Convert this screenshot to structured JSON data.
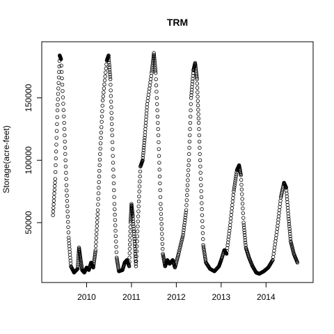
{
  "chart_data": {
    "type": "scatter",
    "title": "TRM",
    "xlabel": "",
    "ylabel": "Storage(acre-feet)",
    "x_ticks": [
      {
        "label": "2010",
        "value": 2010
      },
      {
        "label": "2011",
        "value": 2011
      },
      {
        "label": "2012",
        "value": 2012
      },
      {
        "label": "2013",
        "value": 2013
      },
      {
        "label": "2014",
        "value": 2014
      }
    ],
    "y_ticks": [
      {
        "label": "50000",
        "value": 50000
      },
      {
        "label": "100000",
        "value": 100000
      },
      {
        "label": "150000",
        "value": 150000
      }
    ],
    "xlim": [
      2009.0,
      2015.05
    ],
    "ylim": [
      2000,
      195000
    ],
    "grid": false,
    "marker": "open-circle",
    "series": [
      {
        "points": [
          [
            2009.25,
            56000
          ],
          [
            2009.3,
            85000
          ],
          [
            2009.35,
            140000
          ],
          [
            2009.4,
            184000
          ],
          [
            2009.43,
            181000
          ],
          [
            2009.5,
            130000
          ],
          [
            2009.55,
            80000
          ],
          [
            2009.6,
            38000
          ],
          [
            2009.65,
            15000
          ],
          [
            2009.72,
            10000
          ],
          [
            2009.8,
            13000
          ],
          [
            2009.83,
            30000
          ],
          [
            2009.86,
            22000
          ],
          [
            2009.9,
            12000
          ],
          [
            2009.95,
            10000
          ],
          [
            2010.0,
            14000
          ],
          [
            2010.05,
            12000
          ],
          [
            2010.1,
            18000
          ],
          [
            2010.15,
            14000
          ],
          [
            2010.2,
            28000
          ],
          [
            2010.25,
            60000
          ],
          [
            2010.3,
            105000
          ],
          [
            2010.36,
            148000
          ],
          [
            2010.45,
            180000
          ],
          [
            2010.49,
            184000
          ],
          [
            2010.53,
            165000
          ],
          [
            2010.57,
            120000
          ],
          [
            2010.62,
            65000
          ],
          [
            2010.67,
            22000
          ],
          [
            2010.72,
            11000
          ],
          [
            2010.8,
            12000
          ],
          [
            2010.85,
            18000
          ],
          [
            2010.9,
            20000
          ],
          [
            2010.95,
            15000
          ],
          [
            2010.98,
            50000
          ],
          [
            2011.0,
            65000
          ],
          [
            2011.03,
            55000
          ],
          [
            2011.07,
            35000
          ],
          [
            2011.1,
            15000
          ],
          [
            2011.15,
            55000
          ],
          [
            2011.2,
            95000
          ],
          [
            2011.25,
            100000
          ],
          [
            2011.3,
            120000
          ],
          [
            2011.35,
            145000
          ],
          [
            2011.45,
            170000
          ],
          [
            2011.5,
            186000
          ],
          [
            2011.54,
            170000
          ],
          [
            2011.6,
            120000
          ],
          [
            2011.65,
            65000
          ],
          [
            2011.7,
            25000
          ],
          [
            2011.75,
            15000
          ],
          [
            2011.8,
            20000
          ],
          [
            2011.85,
            17000
          ],
          [
            2011.92,
            20000
          ],
          [
            2011.97,
            14000
          ],
          [
            2012.05,
            25000
          ],
          [
            2012.15,
            40000
          ],
          [
            2012.22,
            60000
          ],
          [
            2012.28,
            100000
          ],
          [
            2012.33,
            150000
          ],
          [
            2012.38,
            172000
          ],
          [
            2012.42,
            178000
          ],
          [
            2012.46,
            165000
          ],
          [
            2012.5,
            130000
          ],
          [
            2012.55,
            80000
          ],
          [
            2012.6,
            32000
          ],
          [
            2012.66,
            18000
          ],
          [
            2012.75,
            13000
          ],
          [
            2012.85,
            11000
          ],
          [
            2012.95,
            15000
          ],
          [
            2013.0,
            20000
          ],
          [
            2013.07,
            28000
          ],
          [
            2013.12,
            25000
          ],
          [
            2013.2,
            48000
          ],
          [
            2013.28,
            75000
          ],
          [
            2013.35,
            92000
          ],
          [
            2013.4,
            96000
          ],
          [
            2013.44,
            88000
          ],
          [
            2013.5,
            50000
          ],
          [
            2013.55,
            30000
          ],
          [
            2013.62,
            22000
          ],
          [
            2013.7,
            15000
          ],
          [
            2013.78,
            10000
          ],
          [
            2013.85,
            9000
          ],
          [
            2013.95,
            11000
          ],
          [
            2014.05,
            14000
          ],
          [
            2014.15,
            20000
          ],
          [
            2014.25,
            45000
          ],
          [
            2014.33,
            70000
          ],
          [
            2014.4,
            82000
          ],
          [
            2014.45,
            78000
          ],
          [
            2014.5,
            55000
          ],
          [
            2014.55,
            35000
          ],
          [
            2014.62,
            25000
          ],
          [
            2014.7,
            18000
          ]
        ]
      }
    ]
  }
}
